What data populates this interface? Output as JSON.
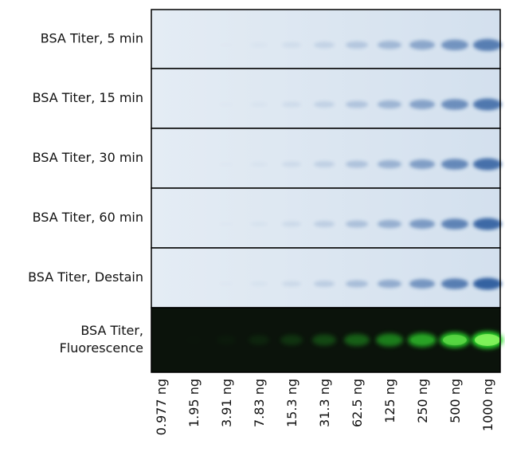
{
  "panels": [
    {
      "label_lines": [
        "BSA Titer, 5 min"
      ],
      "kind": "stain"
    },
    {
      "label_lines": [
        "BSA Titer, 15 min"
      ],
      "kind": "stain"
    },
    {
      "label_lines": [
        "BSA Titer, 30 min"
      ],
      "kind": "stain"
    },
    {
      "label_lines": [
        "BSA Titer, 60 min"
      ],
      "kind": "stain"
    },
    {
      "label_lines": [
        "BSA Titer, Destain"
      ],
      "kind": "stain"
    },
    {
      "label_lines": [
        "BSA Titer,",
        "Fluorescence"
      ],
      "kind": "fluorescence"
    }
  ],
  "lanes": [
    "0.977 ng",
    "1.95 ng",
    "3.91 ng",
    "7.83 ng",
    "15.3 ng",
    "31.3 ng",
    "62.5 ng",
    "125 ng",
    "250 ng",
    "500 ng",
    "1000 ng"
  ]
}
